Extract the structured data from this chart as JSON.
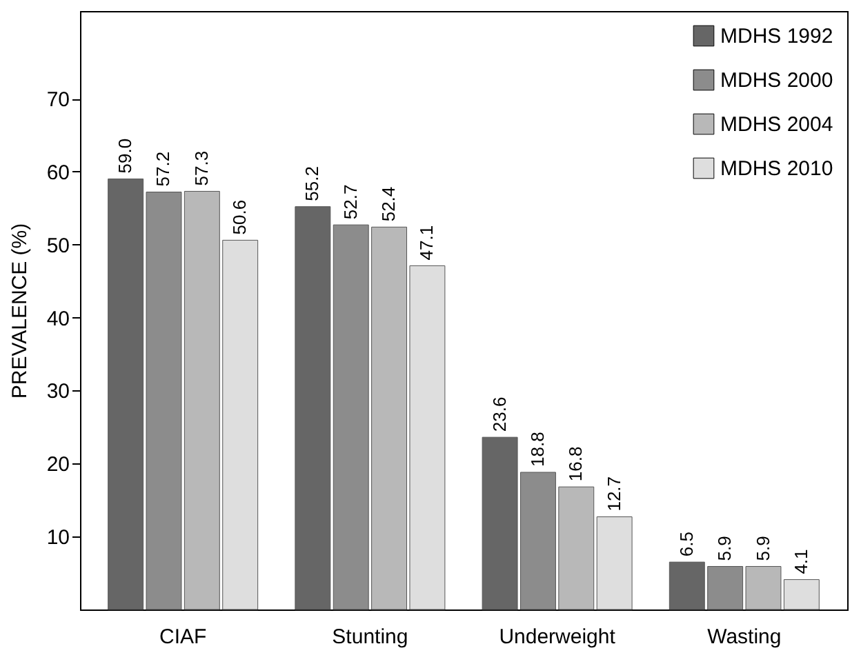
{
  "chart_data": {
    "type": "bar",
    "ylabel": "PREVALENCE (%)",
    "categories": [
      "CIAF",
      "Stunting",
      "Underweight",
      "Wasting"
    ],
    "series": [
      {
        "name": "MDHS 1992",
        "color": "#666666",
        "values": [
          59.0,
          55.2,
          23.6,
          6.5
        ],
        "value_labels": [
          "59.0",
          "55.2",
          "23.6",
          "6.5"
        ]
      },
      {
        "name": "MDHS 2000",
        "color": "#8c8c8c",
        "values": [
          57.2,
          52.7,
          18.8,
          5.9
        ],
        "value_labels": [
          "57.2",
          "52.7",
          "18.8",
          "5.9"
        ]
      },
      {
        "name": "MDHS 2004",
        "color": "#b8b8b8",
        "values": [
          57.3,
          52.4,
          16.8,
          5.9
        ],
        "value_labels": [
          "57.3",
          "52.4",
          "16.8",
          "5.9"
        ]
      },
      {
        "name": "MDHS 2010",
        "color": "#dedede",
        "values": [
          50.6,
          47.1,
          12.7,
          4.1
        ],
        "value_labels": [
          "50.6",
          "47.1",
          "12.7",
          "4.1"
        ]
      }
    ],
    "ylim": [
      0,
      82
    ],
    "yticks": [
      10,
      20,
      30,
      40,
      50,
      60,
      70
    ],
    "grid": false,
    "legend": "top right"
  }
}
